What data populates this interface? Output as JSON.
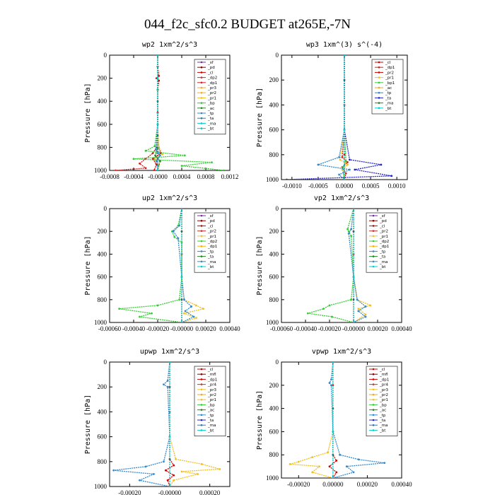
{
  "figure": {
    "title": "044_f2c_sfc0.2  BUDGET at265E,-7N"
  },
  "chart_data": [
    {
      "type": "line",
      "title": "wp2  1xm^2/s^3",
      "ylabel": "Pressure [hPa]",
      "ylim": [
        1000,
        0
      ],
      "xlim": [
        -0.0008,
        0.0012
      ],
      "xticks": [
        -0.0008,
        -0.0004,
        0.0,
        0.0004,
        0.0008,
        0.0012
      ],
      "xtick_labels": [
        "-0.0008",
        "-0.0004",
        "-0.0000",
        "0.0004",
        "0.0008",
        "0.0012"
      ],
      "yticks": [
        0,
        200,
        400,
        600,
        800,
        1000
      ],
      "legend_position": "top-right",
      "legend": [
        "_sf",
        "_pd",
        "_cl",
        "_dp2",
        "_dp1",
        "_pr3",
        "_pr2",
        "_pr1",
        "_bp",
        "_ac",
        "_tp",
        "_ta",
        "_ma",
        "_bt"
      ],
      "grid": false,
      "series": [
        {
          "name": "_sf",
          "color": "#7030a0",
          "y": [
            0,
            100,
            200,
            300,
            400,
            500,
            600,
            700,
            800,
            850,
            900,
            950,
            1000
          ],
          "x": [
            0,
            0,
            0,
            0,
            0,
            0,
            0,
            0,
            0,
            0,
            0,
            0,
            0
          ]
        },
        {
          "name": "_cl",
          "color": "#cc0000",
          "y": [
            0,
            100,
            180,
            200,
            220,
            300,
            500,
            700,
            800,
            850,
            900,
            950,
            1000
          ],
          "x": [
            0,
            0,
            2e-05,
            -2e-05,
            2e-05,
            0,
            0,
            0,
            2e-05,
            5e-05,
            -8e-05,
            -2e-05,
            -6e-05
          ]
        },
        {
          "name": "_dp1",
          "color": "#cc2222",
          "y": [
            0,
            300,
            600,
            800,
            850,
            900,
            940,
            980,
            1000
          ],
          "x": [
            0,
            0,
            0,
            -2e-05,
            -8e-05,
            -0.0002,
            -0.0003,
            -0.0002,
            -0.0007
          ]
        },
        {
          "name": "_pr1",
          "color": "#f0c020",
          "y": [
            0,
            300,
            600,
            800,
            860,
            900,
            950,
            1000
          ],
          "x": [
            0,
            0,
            0,
            2e-05,
            8e-05,
            -5e-05,
            2e-05,
            0
          ]
        },
        {
          "name": "_bp",
          "color": "#33cc33",
          "y": [
            0,
            300,
            600,
            790,
            830,
            870,
            900,
            930,
            960,
            1000
          ],
          "x": [
            0,
            0,
            0,
            -5e-05,
            -0.0002,
            0.00045,
            -0.0004,
            0.0009,
            0.0004,
            0.0011
          ]
        },
        {
          "name": "_ac",
          "color": "#228822",
          "y": [
            0,
            300,
            600,
            800,
            870,
            920,
            1000
          ],
          "x": [
            0,
            0,
            0,
            0,
            -4e-05,
            4e-05,
            0
          ]
        },
        {
          "name": "_tp",
          "color": "#3388cc",
          "y": [
            0,
            200,
            600,
            820,
            870,
            920,
            1000
          ],
          "x": [
            0,
            0,
            0,
            -3e-05,
            4e-05,
            -2e-05,
            0
          ]
        },
        {
          "name": "_bt",
          "color": "#00cccc",
          "y": [
            0,
            200,
            600,
            850,
            1000
          ],
          "x": [
            0,
            0,
            0,
            1e-05,
            0
          ]
        }
      ]
    },
    {
      "type": "line",
      "title": "wp3  1xm^(3) s^(-4)",
      "ylabel": "Pressure [hPa]",
      "ylim": [
        1000,
        0
      ],
      "xlim": [
        -0.0012,
        0.0012
      ],
      "xticks": [
        -0.001,
        -0.0005,
        0.0,
        0.0005,
        0.001
      ],
      "xtick_labels": [
        "-0.0010",
        "-0.0005",
        "0.0000",
        "0.0005",
        "0.0010"
      ],
      "yticks": [
        0,
        200,
        400,
        600,
        800,
        1000
      ],
      "legend_position": "top-right",
      "legend": [
        "_cl",
        "_dp1",
        "_pr2",
        "_pr1",
        "_bp1",
        "_ac",
        "_tp",
        "_ta",
        "_ma",
        "_bt"
      ],
      "grid": false,
      "series": [
        {
          "name": "_cl",
          "color": "#cc0000",
          "y": [
            0,
            200,
            400,
            600,
            800,
            1000
          ],
          "x": [
            0,
            0,
            0,
            0,
            0,
            0
          ]
        },
        {
          "name": "_dp1",
          "color": "#cc2222",
          "y": [
            0,
            600,
            820,
            860,
            900,
            950,
            1000
          ],
          "x": [
            0,
            0,
            -4e-05,
            6e-05,
            -4e-05,
            3e-05,
            0
          ]
        },
        {
          "name": "_pr1",
          "color": "#f0c020",
          "y": [
            0,
            600,
            840,
            880,
            920,
            1000
          ],
          "x": [
            0,
            0,
            -8e-05,
            6e-05,
            -4e-05,
            0
          ]
        },
        {
          "name": "_bp1",
          "color": "#33cc33",
          "y": [
            0,
            600,
            850,
            900,
            1000
          ],
          "x": [
            0,
            0,
            3e-05,
            -3e-05,
            0
          ]
        },
        {
          "name": "_tp",
          "color": "#3388cc",
          "y": [
            0,
            600,
            820,
            880,
            920,
            960,
            1000
          ],
          "x": [
            0,
            0,
            -0.0001,
            -0.0005,
            0.0001,
            -0.0001,
            0
          ]
        },
        {
          "name": "_ta",
          "color": "#2222cc",
          "y": [
            0,
            600,
            840,
            880,
            920,
            970,
            1000
          ],
          "x": [
            0,
            0,
            0.0001,
            0.0007,
            0.0002,
            0.0009,
            -0.0011
          ]
        },
        {
          "name": "_bt",
          "color": "#00cccc",
          "y": [
            0,
            600,
            1000
          ],
          "x": [
            0,
            0,
            0
          ]
        }
      ]
    },
    {
      "type": "line",
      "title": "up2  1xm^2/s^3",
      "ylabel": "Pressure [hPa]",
      "ylim": [
        1000,
        0
      ],
      "xlim": [
        -0.0006,
        0.0004
      ],
      "xticks": [
        -0.0006,
        -0.0004,
        -0.0002,
        0.0,
        0.0002,
        0.0004
      ],
      "xtick_labels": [
        "-0.00060",
        "-0.00040",
        "-0.00020",
        "-0.00000",
        "0.00020",
        "0.00040"
      ],
      "yticks": [
        0,
        200,
        400,
        600,
        800,
        1000
      ],
      "legend_position": "top-right",
      "legend": [
        "_sf",
        "_pd",
        "_cl",
        "_pr2",
        "_pr1",
        "_dp2",
        "_dp1",
        "_tp",
        "_ta",
        "_ma",
        "_bt"
      ],
      "grid": false,
      "series": [
        {
          "name": "_cl",
          "color": "#cc0000",
          "y": [
            0,
            200,
            400,
            600,
            800,
            1000
          ],
          "x": [
            0,
            0,
            0,
            0,
            0,
            0
          ]
        },
        {
          "name": "_pr1",
          "color": "#f0c020",
          "y": [
            0,
            600,
            800,
            850,
            880,
            920,
            960,
            1000
          ],
          "x": [
            0,
            0,
            2e-05,
            0.00012,
            0.00018,
            2e-05,
            0.00012,
            0
          ]
        },
        {
          "name": "_dp2",
          "color": "#33cc33",
          "y": [
            0,
            150,
            200,
            250,
            300,
            600,
            800,
            850,
            880,
            920,
            950,
            1000
          ],
          "x": [
            0,
            -3e-05,
            -8e-05,
            -6e-05,
            0,
            0,
            -2e-05,
            -0.0002,
            -0.00052,
            -0.00025,
            -0.00035,
            0
          ]
        },
        {
          "name": "_tp",
          "color": "#3388cc",
          "y": [
            0,
            150,
            200,
            260,
            600,
            800,
            860,
            900,
            950,
            1000
          ],
          "x": [
            0,
            -2e-05,
            -7e-05,
            -3e-05,
            0,
            2e-05,
            8e-05,
            3e-05,
            0.0001,
            0
          ]
        },
        {
          "name": "_bt",
          "color": "#00cccc",
          "y": [
            0,
            600,
            1000
          ],
          "x": [
            0,
            0,
            0
          ]
        }
      ]
    },
    {
      "type": "line",
      "title": "vp2  1xm^2/s^3",
      "ylabel": "Pressure [hPa]",
      "ylim": [
        1000,
        0
      ],
      "xlim": [
        -0.0006,
        0.0004
      ],
      "xticks": [
        -0.0006,
        -0.0004,
        -0.0002,
        0.0,
        0.0002,
        0.0004
      ],
      "xtick_labels": [
        "-0.00060",
        "-0.00040",
        "-0.00020",
        "-0.00000",
        "0.00020",
        "0.00040"
      ],
      "yticks": [
        0,
        200,
        400,
        600,
        800,
        1000
      ],
      "legend_position": "top-right",
      "legend": [
        "_sf",
        "_pd",
        "_cl",
        "_pr2",
        "_pr1",
        "_dp2",
        "_dp1",
        "_tp",
        "_ta",
        "_ma",
        "_bt"
      ],
      "grid": false,
      "series": [
        {
          "name": "_cl",
          "color": "#cc0000",
          "y": [
            0,
            200,
            400,
            600,
            800,
            1000
          ],
          "x": [
            0,
            0,
            0,
            0,
            0,
            0
          ]
        },
        {
          "name": "_pr1",
          "color": "#f0c020",
          "y": [
            0,
            600,
            800,
            850,
            880,
            930,
            1000
          ],
          "x": [
            0,
            0,
            3e-05,
            0.00014,
            4e-05,
            0.0001,
            0
          ]
        },
        {
          "name": "_dp2",
          "color": "#33cc33",
          "y": [
            0,
            180,
            200,
            240,
            600,
            800,
            850,
            880,
            920,
            950,
            1000
          ],
          "x": [
            0,
            -5e-05,
            -4e-05,
            -2e-05,
            0,
            -2e-05,
            -0.0002,
            -0.00025,
            -0.00038,
            -0.00018,
            0
          ]
        },
        {
          "name": "_tp",
          "color": "#3388cc",
          "y": [
            0,
            180,
            220,
            600,
            800,
            860,
            900,
            950,
            1000
          ],
          "x": [
            0,
            -2e-05,
            -4e-05,
            0,
            3e-05,
            0.0001,
            4e-05,
            0.0001,
            0
          ]
        },
        {
          "name": "_bt",
          "color": "#00cccc",
          "y": [
            0,
            600,
            1000
          ],
          "x": [
            0,
            0,
            0
          ]
        }
      ]
    },
    {
      "type": "line",
      "title": "upwp  1xm^2/s^3",
      "ylabel": "Pressure [hPa]",
      "ylim": [
        1000,
        0
      ],
      "xlim": [
        -0.0003,
        0.0003
      ],
      "xticks": [
        -0.0002,
        0.0,
        0.0002
      ],
      "xtick_labels": [
        "-0.00020",
        "-0.00000",
        "0.00020"
      ],
      "yticks": [
        0,
        200,
        400,
        600,
        800,
        1000
      ],
      "legend_position": "top-right",
      "legend": [
        "_cl",
        "_mfl",
        "_dp1",
        "_pr4",
        "_pr3",
        "_pr2",
        "_pr1",
        "_bp",
        "_ac",
        "_tp",
        "_ta",
        "_ma",
        "_bt"
      ],
      "grid": false,
      "series": [
        {
          "name": "_cl",
          "color": "#cc0000",
          "y": [
            0,
            200,
            400,
            600,
            780,
            830,
            870,
            910,
            950,
            1000
          ],
          "x": [
            0,
            0,
            0,
            0,
            0,
            2e-05,
            -2e-05,
            2e-05,
            -1e-05,
            0
          ]
        },
        {
          "name": "_pr1",
          "color": "#f0c020",
          "y": [
            0,
            600,
            780,
            820,
            860,
            880,
            900,
            950,
            1000
          ],
          "x": [
            0,
            0,
            3e-05,
            0.00016,
            0.00025,
            6e-05,
            0.00014,
            2e-05,
            0
          ]
        },
        {
          "name": "_tp",
          "color": "#3388cc",
          "y": [
            0,
            150,
            180,
            200,
            600,
            800,
            840,
            870,
            900,
            950,
            1000
          ],
          "x": [
            0,
            -1e-05,
            -3e-05,
            -1e-05,
            0,
            -3e-05,
            -0.00012,
            -0.00028,
            -8e-05,
            -0.00015,
            0
          ]
        },
        {
          "name": "_bt",
          "color": "#00cccc",
          "y": [
            0,
            600,
            1000
          ],
          "x": [
            0,
            0,
            0
          ]
        }
      ]
    },
    {
      "type": "line",
      "title": "vpwp  1xm^2/s^3",
      "ylabel": "Pressure [hPa]",
      "ylim": [
        1000,
        0
      ],
      "xlim": [
        -0.0003,
        0.0004
      ],
      "xticks": [
        -0.0002,
        0.0,
        0.0002,
        0.0004
      ],
      "xtick_labels": [
        "-0.00020",
        "0.00000",
        "0.00020",
        "0.00040"
      ],
      "yticks": [
        0,
        200,
        400,
        600,
        800,
        1000
      ],
      "legend_position": "top-right",
      "legend": [
        "_cl",
        "_mfl",
        "_dp1",
        "_pr4",
        "_pr3",
        "_pr2",
        "_pr1",
        "_bp",
        "_ac",
        "_tp",
        "_ta",
        "_ma",
        "_bt"
      ],
      "grid": false,
      "series": [
        {
          "name": "_cl",
          "color": "#cc0000",
          "y": [
            0,
            200,
            400,
            600,
            800,
            850,
            900,
            950,
            1000
          ],
          "x": [
            0,
            0,
            0,
            0,
            0,
            2e-05,
            -2e-05,
            2e-05,
            0
          ]
        },
        {
          "name": "_pr1",
          "color": "#f0c020",
          "y": [
            0,
            600,
            780,
            820,
            860,
            880,
            900,
            950,
            1000
          ],
          "x": [
            0,
            0,
            -3e-05,
            -0.00012,
            -0.0002,
            -0.00025,
            -8e-05,
            -0.00012,
            0
          ]
        },
        {
          "name": "_tp",
          "color": "#3388cc",
          "y": [
            0,
            150,
            180,
            200,
            600,
            800,
            840,
            870,
            900,
            950,
            1000
          ],
          "x": [
            0,
            -1e-05,
            -2e-05,
            -1e-05,
            0,
            4e-05,
            0.00015,
            0.0003,
            8e-05,
            0.00012,
            0
          ]
        },
        {
          "name": "_bt",
          "color": "#00cccc",
          "y": [
            0,
            600,
            1000
          ],
          "x": [
            0,
            0,
            0
          ]
        }
      ]
    }
  ]
}
